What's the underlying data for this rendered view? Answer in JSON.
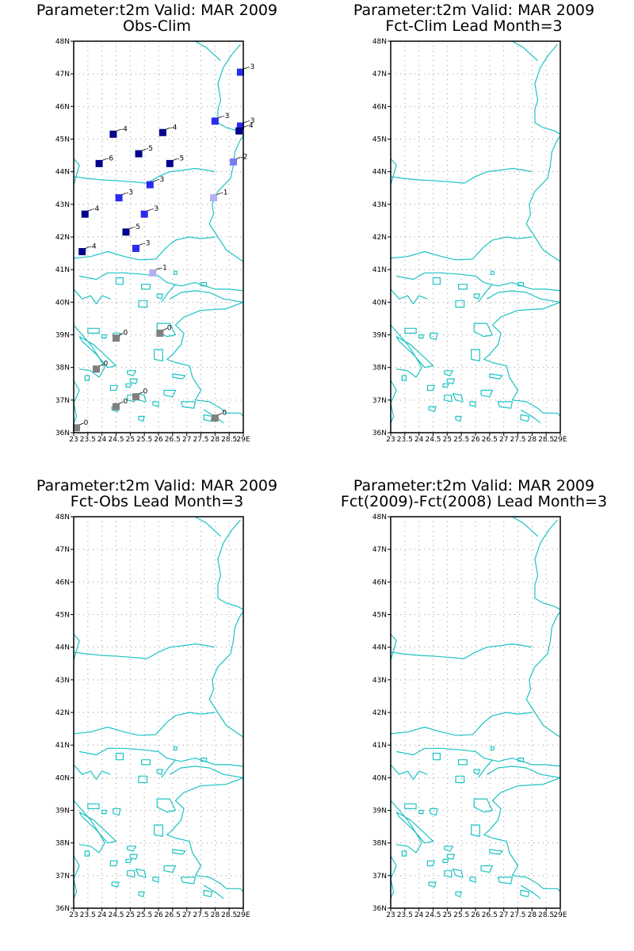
{
  "panels": [
    {
      "id": "p1",
      "title1": "Parameter:t2m Valid: MAR 2009",
      "title2": "Obs-Clim",
      "has_stations": true
    },
    {
      "id": "p2",
      "title1": "Parameter:t2m Valid: MAR 2009",
      "title2": "Fct-Clim Lead Month=3",
      "has_stations": false
    },
    {
      "id": "p3",
      "title1": "Parameter:t2m Valid: MAR 2009",
      "title2": "Fct-Obs Lead Month=3",
      "has_stations": false
    },
    {
      "id": "p4",
      "title1": "Parameter:t2m Valid: MAR 2009",
      "title2": "Fct(2009)-Fct(2008) Lead Month=3",
      "has_stations": false
    }
  ],
  "axes": {
    "lat_labels": [
      "48N",
      "47N",
      "46N",
      "45N",
      "44N",
      "43N",
      "42N",
      "41N",
      "40N",
      "39N",
      "38N",
      "37N",
      "36N"
    ],
    "lon_labels": [
      "23",
      "23.5",
      "24",
      "24.5",
      "25",
      "25.5",
      "26",
      "26.5",
      "27",
      "27.5",
      "28",
      "28.5",
      "29E"
    ],
    "lat_range": [
      36,
      48
    ],
    "lon_range": [
      23,
      29
    ]
  },
  "colors": {
    "coastline": "#1cc3c3",
    "navy": "#00008b",
    "blue": "#2a2aee",
    "mid_blue": "#7a7aee",
    "light_blue": "#b0b0f0",
    "gray": "#808080"
  },
  "stations": [
    {
      "lon": 28.9,
      "lat": 47.05,
      "value": "-3",
      "color": "blue"
    },
    {
      "lon": 28.0,
      "lat": 45.55,
      "value": "-3",
      "color": "blue"
    },
    {
      "lon": 28.9,
      "lat": 45.4,
      "value": "-3",
      "color": "blue"
    },
    {
      "lon": 28.85,
      "lat": 45.25,
      "value": "-4",
      "color": "navy"
    },
    {
      "lon": 24.4,
      "lat": 45.15,
      "value": "-4",
      "color": "navy"
    },
    {
      "lon": 26.15,
      "lat": 45.2,
      "value": "-4",
      "color": "navy"
    },
    {
      "lon": 25.3,
      "lat": 44.55,
      "value": "-5",
      "color": "navy"
    },
    {
      "lon": 23.9,
      "lat": 44.25,
      "value": "-6",
      "color": "navy"
    },
    {
      "lon": 26.4,
      "lat": 44.25,
      "value": "-5",
      "color": "navy"
    },
    {
      "lon": 28.65,
      "lat": 44.3,
      "value": "-2",
      "color": "mid_blue"
    },
    {
      "lon": 25.7,
      "lat": 43.6,
      "value": "-3",
      "color": "blue"
    },
    {
      "lon": 24.6,
      "lat": 43.2,
      "value": "-3",
      "color": "blue"
    },
    {
      "lon": 27.95,
      "lat": 43.2,
      "value": "-1",
      "color": "light_blue"
    },
    {
      "lon": 23.4,
      "lat": 42.7,
      "value": "-4",
      "color": "navy"
    },
    {
      "lon": 25.5,
      "lat": 42.7,
      "value": "-3",
      "color": "blue"
    },
    {
      "lon": 24.85,
      "lat": 42.15,
      "value": "-5",
      "color": "navy"
    },
    {
      "lon": 25.2,
      "lat": 41.65,
      "value": "-3",
      "color": "blue"
    },
    {
      "lon": 23.3,
      "lat": 41.55,
      "value": "-4",
      "color": "navy"
    },
    {
      "lon": 25.8,
      "lat": 40.9,
      "value": "-1",
      "color": "light_blue"
    },
    {
      "lon": 24.5,
      "lat": 38.9,
      "value": "0",
      "color": "gray"
    },
    {
      "lon": 26.05,
      "lat": 39.05,
      "value": "0",
      "color": "gray"
    },
    {
      "lon": 23.8,
      "lat": 37.95,
      "value": "0",
      "color": "gray"
    },
    {
      "lon": 25.2,
      "lat": 37.1,
      "value": "0",
      "color": "gray"
    },
    {
      "lon": 24.5,
      "lat": 36.8,
      "value": "0",
      "color": "gray"
    },
    {
      "lon": 28.0,
      "lat": 36.45,
      "value": "0",
      "color": "gray"
    },
    {
      "lon": 23.1,
      "lat": 36.15,
      "value": "0",
      "color": "gray"
    }
  ]
}
